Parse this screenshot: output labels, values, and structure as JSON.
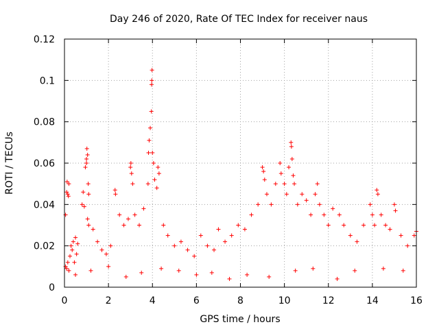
{
  "chart_data": {
    "type": "scatter",
    "title": "Day 246 of 2020, Rate Of TEC Index for receiver naus",
    "xlabel": "GPS time / hours",
    "ylabel": "ROTI / TECUs",
    "xlim": [
      0,
      16
    ],
    "ylim": [
      0,
      0.12
    ],
    "xticks": [
      0,
      2,
      4,
      6,
      8,
      10,
      12,
      14,
      16
    ],
    "xtick_labels": [
      "0",
      "2",
      "4",
      "6",
      "8",
      "10",
      "12",
      "14",
      "16"
    ],
    "yticks": [
      0,
      0.02,
      0.04,
      0.06,
      0.08,
      0.1,
      0.12
    ],
    "ytick_labels": [
      "0",
      "0.02",
      "0.04",
      "0.06",
      "0.08",
      "0.1",
      "0.12"
    ],
    "grid": true,
    "marker": "plus",
    "series": [
      {
        "name": "ROTI",
        "color": "#ff0000",
        "points": [
          [
            0.05,
            0.035
          ],
          [
            0.1,
            0.046
          ],
          [
            0.12,
            0.051
          ],
          [
            0.15,
            0.045
          ],
          [
            0.18,
            0.044
          ],
          [
            0.2,
            0.05
          ],
          [
            0.05,
            0.01
          ],
          [
            0.1,
            0.009
          ],
          [
            0.15,
            0.012
          ],
          [
            0.2,
            0.008
          ],
          [
            0.25,
            0.015
          ],
          [
            0.3,
            0.02
          ],
          [
            0.35,
            0.018
          ],
          [
            0.4,
            0.022
          ],
          [
            0.45,
            0.012
          ],
          [
            0.5,
            0.024
          ],
          [
            0.55,
            0.016
          ],
          [
            0.6,
            0.021
          ],
          [
            0.8,
            0.04
          ],
          [
            0.85,
            0.046
          ],
          [
            0.9,
            0.039
          ],
          [
            0.95,
            0.058
          ],
          [
            1.0,
            0.062
          ],
          [
            1.02,
            0.067
          ],
          [
            1.05,
            0.064
          ],
          [
            1.0,
            0.06
          ],
          [
            1.08,
            0.05
          ],
          [
            1.1,
            0.045
          ],
          [
            1.05,
            0.033
          ],
          [
            1.1,
            0.03
          ],
          [
            1.3,
            0.028
          ],
          [
            1.5,
            0.022
          ],
          [
            1.7,
            0.018
          ],
          [
            1.9,
            0.016
          ],
          [
            2.1,
            0.02
          ],
          [
            2.3,
            0.047
          ],
          [
            2.32,
            0.045
          ],
          [
            2.5,
            0.035
          ],
          [
            2.7,
            0.03
          ],
          [
            2.9,
            0.033
          ],
          [
            3.0,
            0.058
          ],
          [
            3.02,
            0.06
          ],
          [
            3.05,
            0.055
          ],
          [
            3.1,
            0.05
          ],
          [
            3.2,
            0.035
          ],
          [
            3.4,
            0.03
          ],
          [
            3.6,
            0.038
          ],
          [
            3.8,
            0.05
          ],
          [
            3.82,
            0.065
          ],
          [
            3.85,
            0.071
          ],
          [
            3.9,
            0.077
          ],
          [
            3.95,
            0.085
          ],
          [
            3.96,
            0.098
          ],
          [
            3.97,
            0.1
          ],
          [
            3.98,
            0.105
          ],
          [
            4.0,
            0.065
          ],
          [
            4.05,
            0.06
          ],
          [
            4.1,
            0.052
          ],
          [
            4.2,
            0.048
          ],
          [
            4.25,
            0.058
          ],
          [
            4.3,
            0.055
          ],
          [
            4.5,
            0.03
          ],
          [
            4.7,
            0.025
          ],
          [
            5.0,
            0.02
          ],
          [
            5.3,
            0.022
          ],
          [
            5.6,
            0.018
          ],
          [
            5.9,
            0.015
          ],
          [
            6.2,
            0.025
          ],
          [
            6.5,
            0.02
          ],
          [
            6.8,
            0.018
          ],
          [
            7.0,
            0.028
          ],
          [
            7.3,
            0.022
          ],
          [
            7.6,
            0.025
          ],
          [
            7.9,
            0.03
          ],
          [
            8.2,
            0.028
          ],
          [
            8.5,
            0.035
          ],
          [
            8.8,
            0.04
          ],
          [
            9.0,
            0.058
          ],
          [
            9.05,
            0.056
          ],
          [
            9.1,
            0.052
          ],
          [
            9.2,
            0.045
          ],
          [
            9.4,
            0.04
          ],
          [
            9.6,
            0.05
          ],
          [
            9.8,
            0.06
          ],
          [
            9.85,
            0.055
          ],
          [
            10.0,
            0.05
          ],
          [
            10.1,
            0.045
          ],
          [
            10.2,
            0.058
          ],
          [
            10.3,
            0.07
          ],
          [
            10.32,
            0.068
          ],
          [
            10.35,
            0.062
          ],
          [
            10.4,
            0.054
          ],
          [
            10.45,
            0.05
          ],
          [
            10.6,
            0.04
          ],
          [
            10.8,
            0.045
          ],
          [
            11.0,
            0.042
          ],
          [
            11.2,
            0.035
          ],
          [
            11.4,
            0.045
          ],
          [
            11.5,
            0.05
          ],
          [
            11.6,
            0.04
          ],
          [
            11.8,
            0.035
          ],
          [
            12.0,
            0.03
          ],
          [
            12.2,
            0.038
          ],
          [
            12.5,
            0.035
          ],
          [
            12.7,
            0.03
          ],
          [
            13.0,
            0.025
          ],
          [
            13.3,
            0.022
          ],
          [
            13.6,
            0.03
          ],
          [
            13.9,
            0.04
          ],
          [
            14.0,
            0.035
          ],
          [
            14.1,
            0.03
          ],
          [
            14.2,
            0.047
          ],
          [
            14.25,
            0.045
          ],
          [
            14.4,
            0.035
          ],
          [
            14.6,
            0.03
          ],
          [
            14.8,
            0.028
          ],
          [
            15.0,
            0.04
          ],
          [
            15.05,
            0.037
          ],
          [
            15.3,
            0.025
          ],
          [
            15.6,
            0.02
          ],
          [
            15.9,
            0.025
          ],
          [
            16.0,
            0.027
          ],
          [
            0.5,
            0.006
          ],
          [
            1.2,
            0.008
          ],
          [
            2.0,
            0.01
          ],
          [
            2.8,
            0.005
          ],
          [
            3.5,
            0.007
          ],
          [
            4.4,
            0.009
          ],
          [
            5.2,
            0.008
          ],
          [
            6.0,
            0.006
          ],
          [
            6.7,
            0.007
          ],
          [
            7.5,
            0.004
          ],
          [
            8.3,
            0.006
          ],
          [
            9.3,
            0.005
          ],
          [
            10.5,
            0.008
          ],
          [
            11.3,
            0.009
          ],
          [
            12.4,
            0.004
          ],
          [
            13.2,
            0.008
          ],
          [
            14.5,
            0.009
          ],
          [
            15.4,
            0.008
          ]
        ]
      }
    ]
  }
}
